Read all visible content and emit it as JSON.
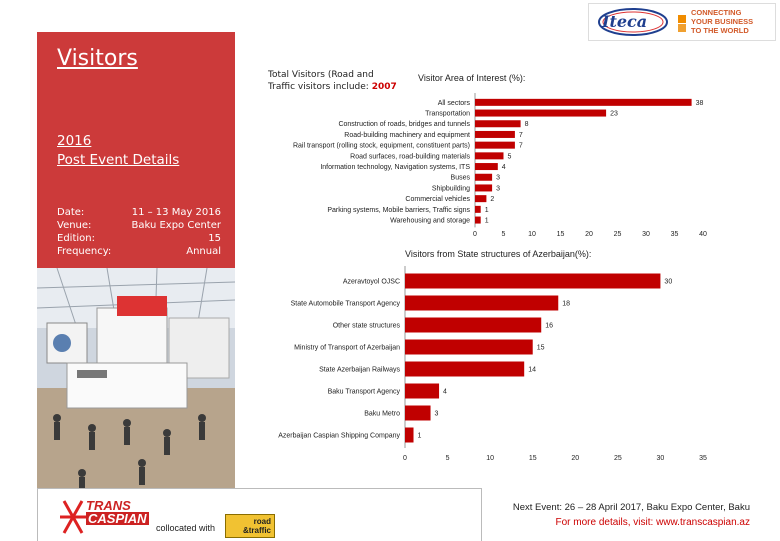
{
  "panel": {
    "title": "Visitors",
    "post_event_line1": "2016",
    "post_event_line2": "Post Event Details",
    "rows": [
      {
        "label": "Date:",
        "value": "11 – 13 May 2016"
      },
      {
        "label": "Venue:",
        "value": "Baku Expo Center"
      },
      {
        "label": "Edition:",
        "value": "15"
      },
      {
        "label": "Frequency:",
        "value": "Annual"
      }
    ]
  },
  "total_visitors": {
    "text_line1": "Total Visitors (Road and",
    "text_line2_prefix": "Traffic visitors include: ",
    "value": "2007"
  },
  "logos": {
    "itca_text": "Iteca",
    "tagline_1": "CONNECTING",
    "tagline_2": "YOUR BUSINESS",
    "tagline_3": "TO THE WORLD",
    "trans_line1": "TRANS",
    "trans_line2": "CASPIAN",
    "road_line1": "road",
    "road_line2": "&traffic"
  },
  "footer": {
    "collocated": "collocated with",
    "next_event": "Next Event: 26 – 28 April 2017, Baku Expo Center, Baku",
    "more_details": "For more details, visit: www.transcaspian.az"
  },
  "colors": {
    "bar": "#c00000",
    "panel": "#cc3a3a",
    "accent": "#cc0000"
  },
  "chart_data": [
    {
      "type": "bar",
      "orientation": "horizontal",
      "title": "Visitor Area of Interest (%):",
      "categories": [
        "All sectors",
        "Transportation",
        "Construction of roads, bridges and tunnels",
        "Road-building machinery and equipment",
        "Rail transport (rolling stock, equipment, constituent parts)",
        "Road surfaces, road-building materials",
        "Information technology, Navigation systems, ITS",
        "Buses",
        "Shipbuilding",
        "Commercial vehicles",
        "Parking systems, Mobile barriers, Traffic signs",
        "Warehousing and storage"
      ],
      "values": [
        38,
        23,
        8,
        7,
        7,
        5,
        4,
        3,
        3,
        2,
        1,
        1
      ],
      "xlim": [
        0,
        40
      ],
      "ticks": [
        0,
        5,
        10,
        15,
        20,
        25,
        30,
        35,
        40
      ],
      "grid": false
    },
    {
      "type": "bar",
      "orientation": "horizontal",
      "title": "Visitors from State structures of Azerbaijan(%):",
      "categories": [
        "Azeravtoyol OJSC",
        "State Automobile Transport Agency",
        "Other state structures",
        "Ministry of Transport of Azerbaijan",
        "State Azerbaijan Railways",
        "Baku Transport Agency",
        "Baku Metro",
        "Azerbaijan Caspian Shipping Company"
      ],
      "values": [
        30,
        18,
        16,
        15,
        14,
        4,
        3,
        1
      ],
      "xlim": [
        0,
        35
      ],
      "ticks": [
        0,
        5,
        10,
        15,
        20,
        25,
        30,
        35
      ],
      "grid": false
    }
  ]
}
